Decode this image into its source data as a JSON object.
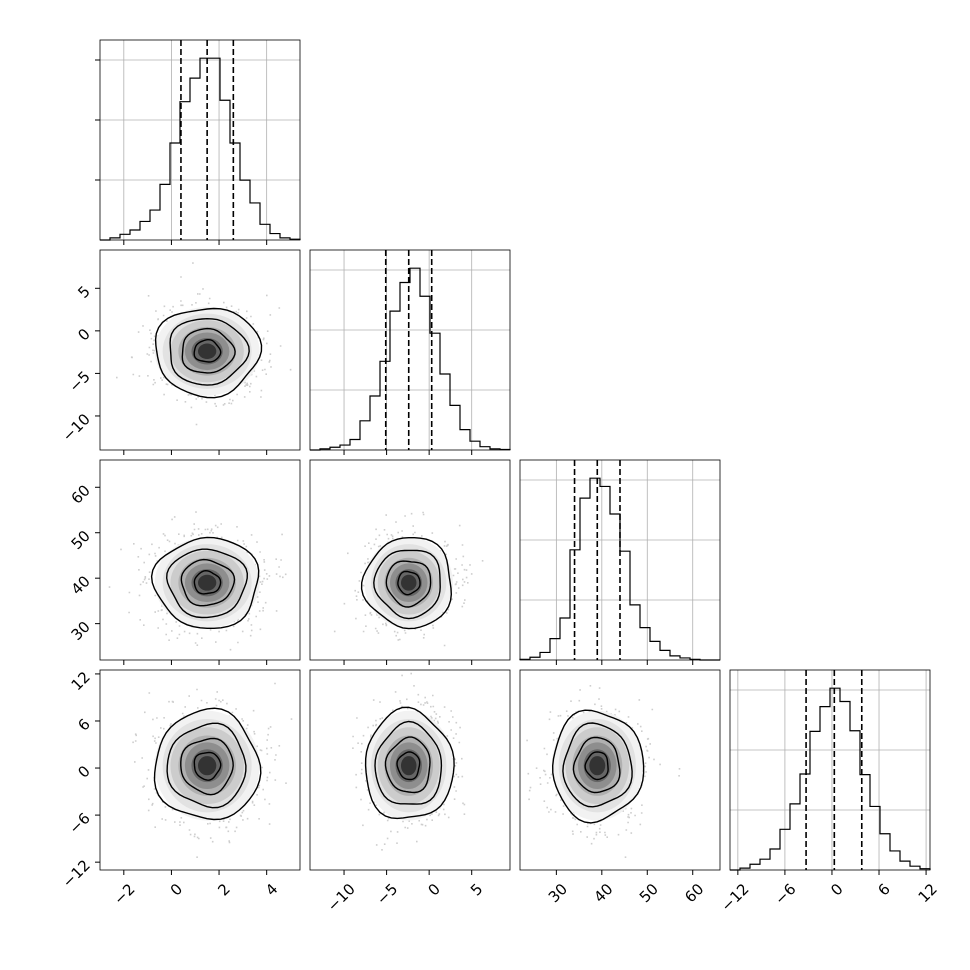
{
  "chart_data": {
    "type": "corner",
    "title": "",
    "grid": true,
    "params": [
      {
        "range": [
          -3,
          5.4
        ],
        "ticks": [
          -2,
          0,
          2,
          4
        ],
        "tick_labels": [
          "−2",
          "0",
          "2",
          "4"
        ],
        "quantiles": [
          0.4,
          1.5,
          2.6
        ],
        "hist": {
          "edges": [
            -3,
            -2.58,
            -2.16,
            -1.74,
            -1.32,
            -0.9,
            -0.48,
            -0.06,
            0.36,
            0.78,
            1.2,
            1.62,
            2.04,
            2.46,
            2.88,
            3.3,
            3.72,
            4.14,
            4.56,
            4.98,
            5.4
          ],
          "counts": [
            0,
            3,
            8,
            14,
            26,
            42,
            78,
            136,
            194,
            227,
            255,
            255,
            196,
            136,
            84,
            52,
            22,
            9,
            3,
            1
          ]
        }
      },
      {
        "range": [
          -14,
          9.5
        ],
        "ticks": [
          -10,
          -5,
          0,
          5
        ],
        "tick_labels": [
          "−10",
          "−5",
          "0",
          "5"
        ],
        "quantiles": [
          -5.1,
          -2.4,
          0.3
        ],
        "hist": {
          "edges": [
            -14,
            -12.825,
            -11.65,
            -10.475,
            -9.3,
            -8.125,
            -6.95,
            -5.775,
            -4.6,
            -3.425,
            -2.25,
            -1.075,
            0.1,
            1.275,
            2.45,
            3.625,
            4.8,
            5.975,
            7.15,
            8.325,
            9.5
          ],
          "counts": [
            0,
            2,
            5,
            9,
            19,
            53,
            98,
            161,
            252,
            304,
            330,
            279,
            212,
            138,
            81,
            37,
            16,
            6,
            2,
            1
          ]
        }
      },
      {
        "range": [
          22,
          66
        ],
        "ticks": [
          30,
          40,
          50,
          60
        ],
        "tick_labels": [
          "30",
          "40",
          "50",
          "60"
        ],
        "quantiles": [
          34,
          39,
          44
        ],
        "hist": {
          "edges": [
            22,
            24.2,
            26.4,
            28.6,
            30.8,
            33,
            35.2,
            37.4,
            39.6,
            41.8,
            44,
            46.2,
            48.4,
            50.6,
            52.8,
            55,
            57.2,
            59.4,
            61.6,
            63.8,
            66
          ],
          "counts": [
            1,
            4,
            11,
            31,
            61,
            160,
            235,
            264,
            252,
            212,
            158,
            80,
            47,
            27,
            14,
            6,
            3,
            1,
            0,
            0
          ]
        }
      },
      {
        "range": [
          -13,
          12.5
        ],
        "ticks": [
          -12,
          -6,
          0,
          6,
          12
        ],
        "tick_labels": [
          "−12",
          "−6",
          "0",
          "6",
          "12"
        ],
        "quantiles": [
          -3.3,
          0.3,
          3.8
        ],
        "hist": {
          "edges": [
            -13,
            -11.725,
            -10.45,
            -9.175,
            -7.9,
            -6.625,
            -5.35,
            -4.075,
            -2.8,
            -1.525,
            -0.25,
            1.025,
            2.3,
            3.575,
            4.85,
            6.125,
            7.4,
            8.675,
            9.95,
            11.225,
            12.5
          ],
          "counts": [
            0,
            3,
            9,
            17,
            33,
            64,
            104,
            151,
            218,
            257,
            286,
            265,
            219,
            150,
            100,
            57,
            30,
            14,
            6,
            2
          ]
        }
      }
    ],
    "pairs": [
      {
        "row": 1,
        "col": 0,
        "center": [
          1.5,
          -2.4
        ],
        "sigma": [
          1.1,
          2.6
        ]
      },
      {
        "row": 2,
        "col": 0,
        "center": [
          1.5,
          39
        ],
        "sigma": [
          1.1,
          5
        ]
      },
      {
        "row": 2,
        "col": 1,
        "center": [
          -2.4,
          39
        ],
        "sigma": [
          2.6,
          5
        ]
      },
      {
        "row": 3,
        "col": 0,
        "center": [
          1.5,
          0.3
        ],
        "sigma": [
          1.1,
          3.5
        ]
      },
      {
        "row": 3,
        "col": 1,
        "center": [
          -2.4,
          0.3
        ],
        "sigma": [
          2.6,
          3.5
        ]
      },
      {
        "row": 3,
        "col": 2,
        "center": [
          39,
          0.3
        ],
        "sigma": [
          5,
          3.5
        ]
      }
    ],
    "colors": {
      "line": "#000000",
      "grid": "#b0b0b0",
      "scatter": "#bdbdbd",
      "frame": "#000000"
    }
  }
}
